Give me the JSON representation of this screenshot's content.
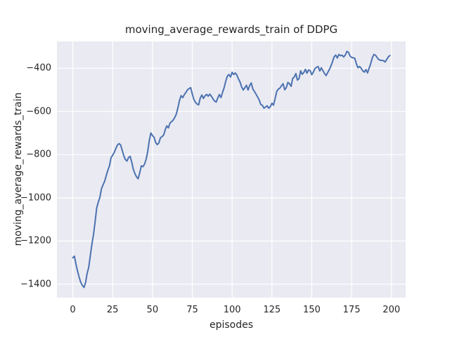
{
  "figure": {
    "background": "#ffffff"
  },
  "chart_data": {
    "type": "line",
    "title": "moving_average_rewards_train of DDPG",
    "xlabel": "episodes",
    "ylabel": "moving_average_rewards_train",
    "grid": true,
    "legend": "none",
    "style": "seaborn-darkgrid",
    "plot_bg": "#eaeaf2",
    "grid_color": "#ffffff",
    "line_color": "#4c72b0",
    "text_color": "#262626",
    "xlim": [
      -9.95,
      208.95
    ],
    "ylim": [
      -1462.5,
      -276
    ],
    "xticks": {
      "values": [
        0,
        25,
        50,
        75,
        100,
        125,
        150,
        175,
        200
      ],
      "labels": [
        "0",
        "25",
        "50",
        "75",
        "100",
        "125",
        "150",
        "175",
        "200"
      ]
    },
    "yticks": {
      "values": [
        -400,
        -600,
        -800,
        -1000,
        -1200,
        -1400
      ],
      "labels": [
        "−400",
        "−600",
        "−800",
        "−1000",
        "−1200",
        "−1400"
      ]
    },
    "x_start": 0,
    "x_step": 1,
    "values": [
      -1278,
      -1270,
      -1308,
      -1340,
      -1368,
      -1392,
      -1405,
      -1415,
      -1393,
      -1350,
      -1322,
      -1266,
      -1215,
      -1170,
      -1110,
      -1047,
      -1020,
      -997,
      -958,
      -940,
      -923,
      -897,
      -872,
      -852,
      -815,
      -803,
      -790,
      -772,
      -756,
      -749,
      -755,
      -780,
      -806,
      -823,
      -830,
      -813,
      -808,
      -835,
      -868,
      -888,
      -903,
      -912,
      -885,
      -852,
      -856,
      -845,
      -822,
      -788,
      -735,
      -700,
      -712,
      -720,
      -744,
      -754,
      -746,
      -722,
      -717,
      -710,
      -685,
      -667,
      -676,
      -654,
      -648,
      -640,
      -628,
      -612,
      -582,
      -548,
      -527,
      -536,
      -522,
      -512,
      -500,
      -494,
      -490,
      -520,
      -545,
      -558,
      -566,
      -570,
      -538,
      -524,
      -540,
      -528,
      -521,
      -530,
      -520,
      -530,
      -542,
      -552,
      -557,
      -538,
      -522,
      -536,
      -512,
      -490,
      -460,
      -437,
      -429,
      -441,
      -419,
      -429,
      -422,
      -432,
      -450,
      -465,
      -487,
      -501,
      -490,
      -479,
      -501,
      -480,
      -468,
      -496,
      -508,
      -520,
      -533,
      -548,
      -568,
      -572,
      -585,
      -580,
      -574,
      -585,
      -578,
      -562,
      -571,
      -540,
      -507,
      -497,
      -492,
      -481,
      -472,
      -500,
      -490,
      -466,
      -472,
      -484,
      -448,
      -441,
      -425,
      -455,
      -448,
      -412,
      -428,
      -420,
      -405,
      -423,
      -408,
      -412,
      -430,
      -418,
      -401,
      -396,
      -392,
      -413,
      -398,
      -412,
      -425,
      -434,
      -420,
      -406,
      -390,
      -370,
      -348,
      -339,
      -353,
      -336,
      -342,
      -340,
      -348,
      -340,
      -322,
      -326,
      -343,
      -350,
      -352,
      -354,
      -380,
      -398,
      -392,
      -400,
      -412,
      -418,
      -406,
      -422,
      -400,
      -378,
      -352,
      -336,
      -340,
      -350,
      -360,
      -363,
      -364,
      -365,
      -371,
      -360,
      -348,
      -341
    ]
  }
}
